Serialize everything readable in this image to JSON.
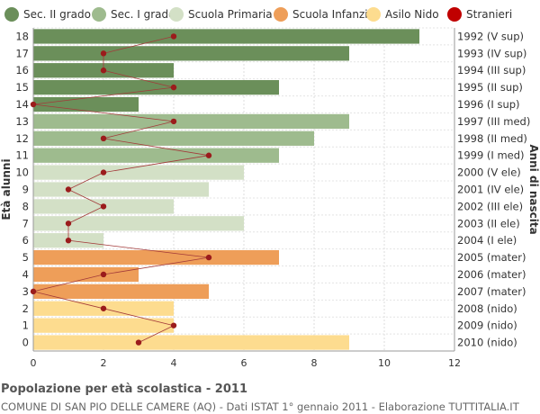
{
  "chart_data": {
    "type": "bar",
    "orientation": "horizontal",
    "title": "Popolazione per età scolastica - 2011",
    "subtitle": "COMUNE DI SAN PIO DELLE CAMERE (AQ) - Dati ISTAT 1° gennaio 2011 - Elaborazione TUTTITALIA.IT",
    "ylabel_left": "Età alunni",
    "ylabel_right": "Anni di nascita",
    "xlim": [
      0,
      12
    ],
    "xticks": [
      0,
      2,
      4,
      6,
      8,
      10,
      12
    ],
    "grid": true,
    "legend_position": "top",
    "legend": [
      {
        "name": "Sec. II grado",
        "color": "#6b8f5a"
      },
      {
        "name": "Sec. I grado",
        "color": "#9ebb8e"
      },
      {
        "name": "Scuola Primaria",
        "color": "#d3e0c6"
      },
      {
        "name": "Scuola Infanzia",
        "color": "#ee9e59"
      },
      {
        "name": "Asilo Nido",
        "color": "#fddc8f"
      },
      {
        "name": "Stranieri",
        "color": "#c00000"
      }
    ],
    "rows": [
      {
        "age": "18",
        "birth": "1992 (V sup)",
        "value": 11,
        "stranieri": 4,
        "group": 0
      },
      {
        "age": "17",
        "birth": "1993 (IV sup)",
        "value": 9,
        "stranieri": 2,
        "group": 0
      },
      {
        "age": "16",
        "birth": "1994 (III sup)",
        "value": 4,
        "stranieri": 2,
        "group": 0
      },
      {
        "age": "15",
        "birth": "1995 (II sup)",
        "value": 7,
        "stranieri": 4,
        "group": 0
      },
      {
        "age": "14",
        "birth": "1996 (I sup)",
        "value": 3,
        "stranieri": 0,
        "group": 0
      },
      {
        "age": "13",
        "birth": "1997 (III med)",
        "value": 9,
        "stranieri": 4,
        "group": 1
      },
      {
        "age": "12",
        "birth": "1998 (II med)",
        "value": 8,
        "stranieri": 2,
        "group": 1
      },
      {
        "age": "11",
        "birth": "1999 (I med)",
        "value": 7,
        "stranieri": 5,
        "group": 1
      },
      {
        "age": "10",
        "birth": "2000 (V ele)",
        "value": 6,
        "stranieri": 2,
        "group": 2
      },
      {
        "age": "9",
        "birth": "2001 (IV ele)",
        "value": 5,
        "stranieri": 1,
        "group": 2
      },
      {
        "age": "8",
        "birth": "2002 (III ele)",
        "value": 4,
        "stranieri": 2,
        "group": 2
      },
      {
        "age": "7",
        "birth": "2003 (II ele)",
        "value": 6,
        "stranieri": 1,
        "group": 2
      },
      {
        "age": "6",
        "birth": "2004 (I ele)",
        "value": 2,
        "stranieri": 1,
        "group": 2
      },
      {
        "age": "5",
        "birth": "2005 (mater)",
        "value": 7,
        "stranieri": 5,
        "group": 3
      },
      {
        "age": "4",
        "birth": "2006 (mater)",
        "value": 3,
        "stranieri": 2,
        "group": 3
      },
      {
        "age": "3",
        "birth": "2007 (mater)",
        "value": 5,
        "stranieri": 0,
        "group": 3
      },
      {
        "age": "2",
        "birth": "2008 (nido)",
        "value": 4,
        "stranieri": 2,
        "group": 4
      },
      {
        "age": "1",
        "birth": "2009 (nido)",
        "value": 4,
        "stranieri": 4,
        "group": 4
      },
      {
        "age": "0",
        "birth": "2010 (nido)",
        "value": 9,
        "stranieri": 3,
        "group": 4
      }
    ]
  }
}
